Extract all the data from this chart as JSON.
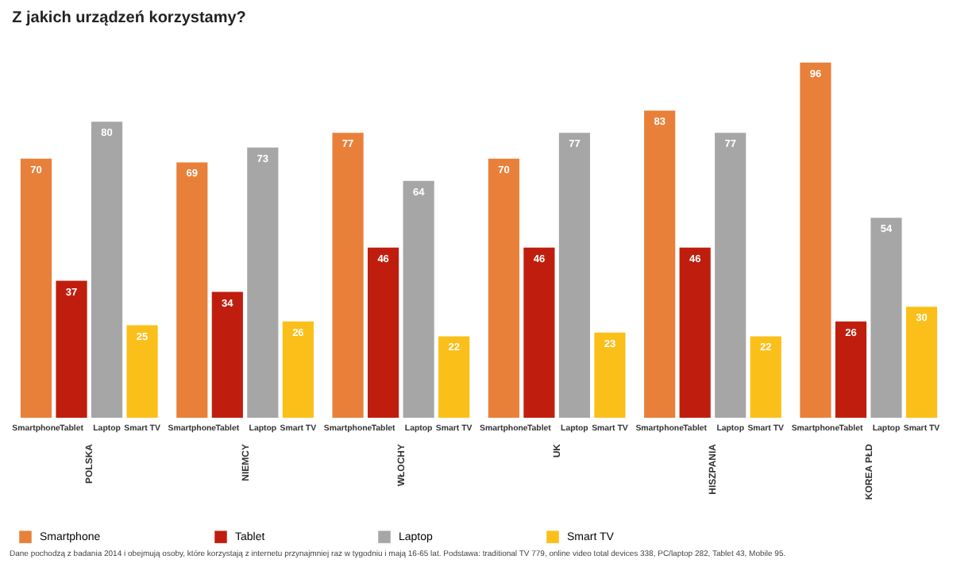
{
  "chart_data": {
    "type": "bar",
    "title": "Z jakich urządzeń korzystamy?",
    "categories": [
      "POLSKA",
      "NIEMCY",
      "WŁOCHY",
      "UK",
      "HISZPANIA",
      "KOREA PŁD"
    ],
    "series": [
      {
        "name": "Smartphone",
        "color": "#e8803a",
        "values": [
          70,
          69,
          77,
          70,
          83,
          96
        ]
      },
      {
        "name": "Tablet",
        "color": "#bf1e0e",
        "values": [
          37,
          34,
          46,
          46,
          46,
          26
        ]
      },
      {
        "name": "Laptop",
        "color": "#a6a6a6",
        "values": [
          80,
          73,
          64,
          77,
          77,
          54
        ]
      },
      {
        "name": "Smart TV",
        "color": "#fbbf1a",
        "values": [
          25,
          26,
          22,
          23,
          22,
          30
        ]
      }
    ],
    "data_labels": true,
    "grid": false,
    "legend": "bottom",
    "annotations": [
      "Dane pochodzą z badania 2014 i obejmują osoby, które korzystają z internetu przynajmniej raz w tygodniu i mają 16-65 lat. Podstawa: traditional TV 779, online video total devices 338, PC/laptop 282, Tablet 43, Mobile 95."
    ]
  }
}
